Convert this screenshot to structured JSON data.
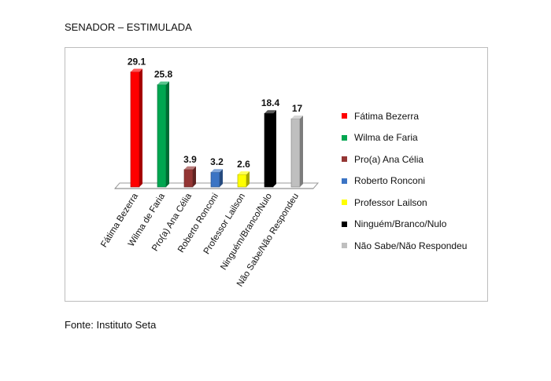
{
  "title": "SENADOR – ESTIMULADA",
  "source": "Fonte: Instituto Seta",
  "chart_data": {
    "type": "bar",
    "categories": [
      "Fátima Bezerra",
      "Wilma de Faria",
      "Pro(a) Ana Célia",
      "Roberto Ronconi",
      "Professor Lailson",
      "Ninguém/Branco/Nulo",
      "Não Sabe/Não Respondeu"
    ],
    "values": [
      29.1,
      25.8,
      3.9,
      3.2,
      2.6,
      18.4,
      17
    ],
    "value_labels": [
      "29.1",
      "25.8",
      "3.9",
      "3.2",
      "2.6",
      "18.4",
      "17"
    ],
    "colors": [
      "#ff0000",
      "#00a650",
      "#943634",
      "#3b74c4",
      "#ffff00",
      "#000000",
      "#bfbfbf"
    ],
    "legend": [
      "Fátima Bezerra",
      "Wilma de Faria",
      "Pro(a) Ana Célia",
      "Roberto Ronconi",
      "Professor Lailson",
      "Ninguém/Branco/Nulo",
      "Não Sabe/Não Respondeu"
    ],
    "legend_position": "right",
    "grid": false,
    "ylim": [
      0,
      30
    ]
  }
}
